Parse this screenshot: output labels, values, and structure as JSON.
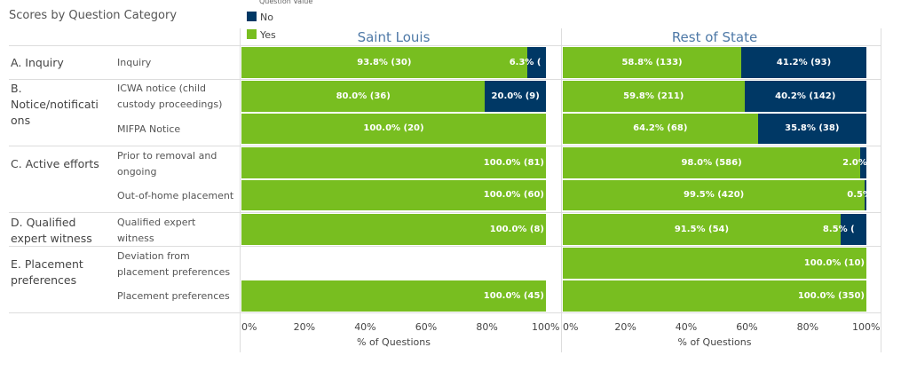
{
  "title": "Scores by Question Category",
  "legend": {
    "header": "Question Value",
    "items": [
      {
        "label": "No",
        "color": "#003865"
      },
      {
        "label": "Yes",
        "color": "#78be20"
      }
    ]
  },
  "chart_data": {
    "type": "bar",
    "orientation": "horizontal-stacked-100",
    "xlabel": "% of Questions",
    "xlim": [
      0,
      100
    ],
    "ticks": [
      "0%",
      "20%",
      "40%",
      "60%",
      "80%",
      "100%"
    ],
    "categories": [
      {
        "group": "A. Inquiry",
        "label": "Inquiry"
      },
      {
        "group": "B. Notice/notifications",
        "label": "ICWA notice (child custody proceedings)"
      },
      {
        "group": "B. Notice/notifications",
        "label": "MIFPA Notice"
      },
      {
        "group": "C. Active efforts",
        "label": "Prior to removal and ongoing"
      },
      {
        "group": "C. Active efforts",
        "label": "Out-of-home placement"
      },
      {
        "group": "D. Qualified expert witness",
        "label": "Qualified expert witness"
      },
      {
        "group": "E. Placement preferences",
        "label": "Deviation from placement preferences"
      },
      {
        "group": "E. Placement preferences",
        "label": "Placement preferences"
      }
    ],
    "groups": [
      "A. Inquiry",
      "B. Notice/notifications",
      "C. Active efforts",
      "D. Qualified expert witness",
      "E. Placement preferences"
    ],
    "panels": [
      {
        "name": "Saint Louis",
        "rows": [
          {
            "yes": 93.8,
            "yes_n": 30,
            "yes_label": "93.8% (30)",
            "no": 6.3,
            "no_label": "6.3% ("
          },
          {
            "yes": 80.0,
            "yes_n": 36,
            "yes_label": "80.0% (36)",
            "no": 20.0,
            "no_n": 9,
            "no_label": "20.0% (9)"
          },
          {
            "yes": 100.0,
            "yes_n": 20,
            "yes_label": "100.0% (20)"
          },
          {
            "yes": 100.0,
            "yes_n": 81,
            "yes_label": "100.0% (81)"
          },
          {
            "yes": 100.0,
            "yes_n": 60,
            "yes_label": "100.0% (60)"
          },
          {
            "yes": 100.0,
            "yes_n": 8,
            "yes_label": "100.0% (8)"
          },
          null,
          {
            "yes": 100.0,
            "yes_n": 45,
            "yes_label": "100.0% (45)"
          }
        ]
      },
      {
        "name": "Rest of State",
        "rows": [
          {
            "yes": 58.8,
            "yes_n": 133,
            "yes_label": "58.8% (133)",
            "no": 41.2,
            "no_n": 93,
            "no_label": "41.2% (93)"
          },
          {
            "yes": 59.8,
            "yes_n": 211,
            "yes_label": "59.8% (211)",
            "no": 40.2,
            "no_n": 142,
            "no_label": "40.2% (142)"
          },
          {
            "yes": 64.2,
            "yes_n": 68,
            "yes_label": "64.2% (68)",
            "no": 35.8,
            "no_n": 38,
            "no_label": "35.8% (38)"
          },
          {
            "yes": 98.0,
            "yes_n": 586,
            "yes_label": "98.0% (586)",
            "no": 2.0,
            "no_label": "2.0% ("
          },
          {
            "yes": 99.5,
            "yes_n": 420,
            "yes_label": "99.5% (420)",
            "no": 0.5,
            "no_label": "0.5%"
          },
          {
            "yes": 91.5,
            "yes_n": 54,
            "yes_label": "91.5% (54)",
            "no": 8.5,
            "no_label": "8.5% ("
          },
          {
            "yes": 100.0,
            "yes_n": 10,
            "yes_label": "100.0% (10)"
          },
          {
            "yes": 100.0,
            "yes_n": 350,
            "yes_label": "100.0% (350)"
          }
        ]
      }
    ]
  }
}
